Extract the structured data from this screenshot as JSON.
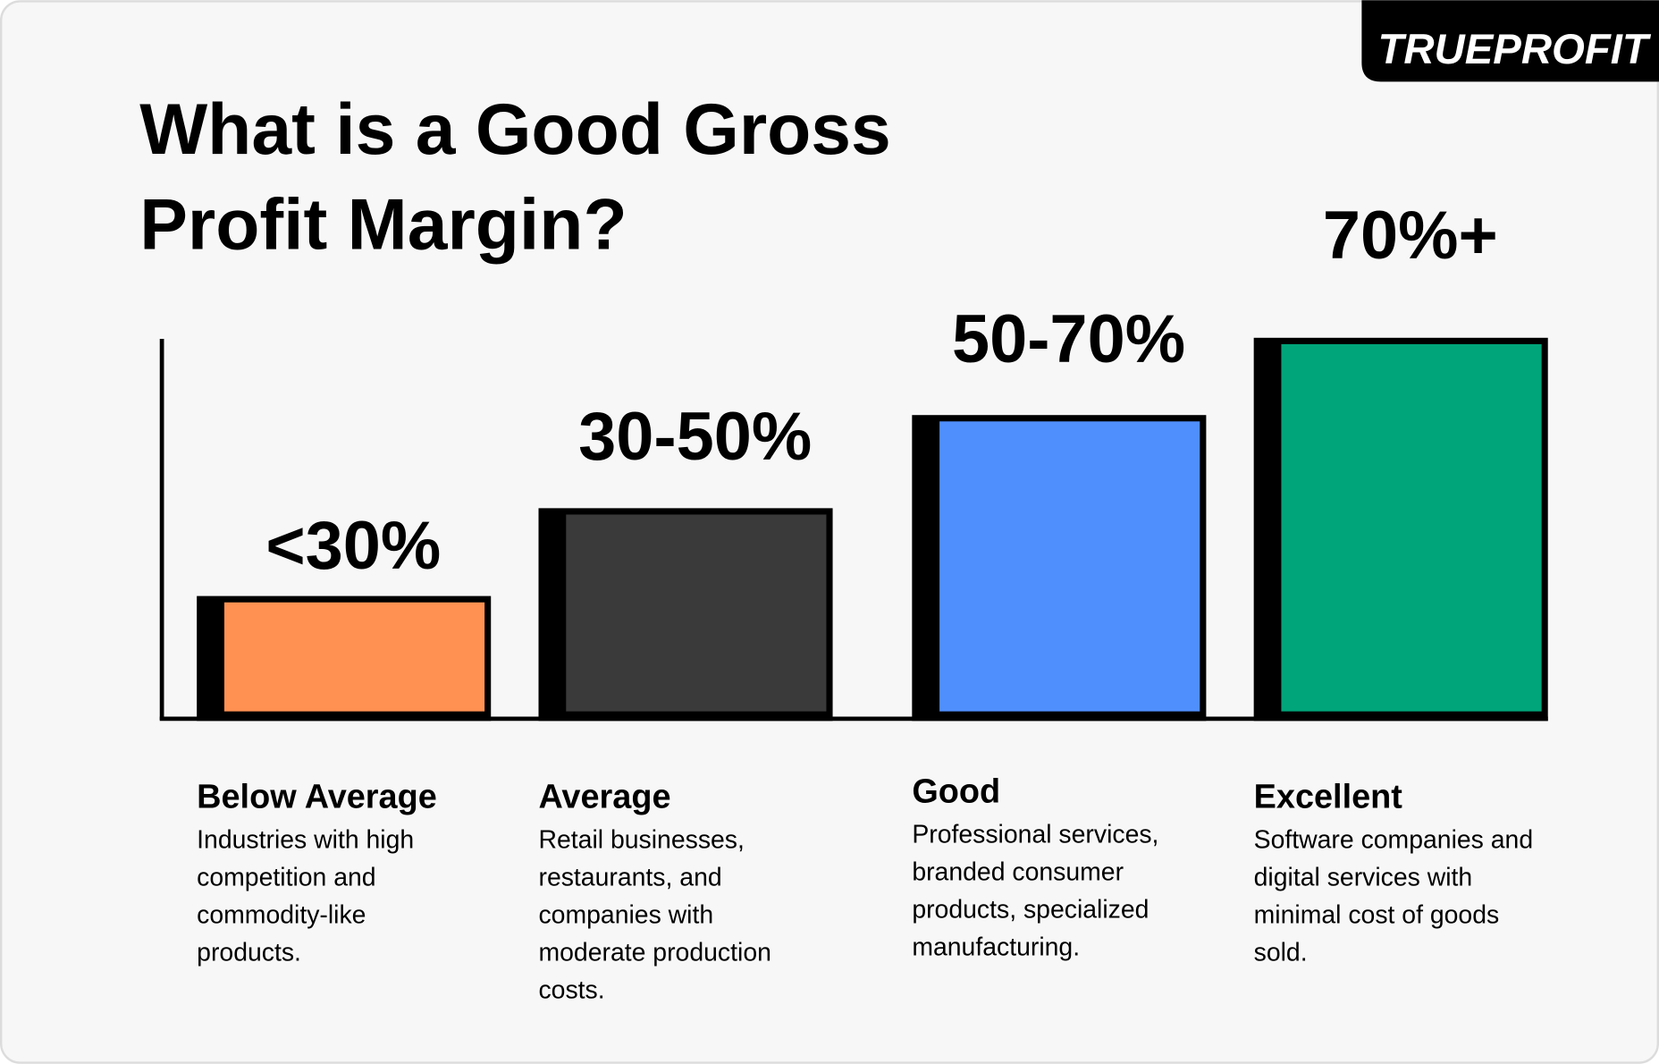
{
  "logo": "TRUEPROFIT",
  "title": [
    "What is a Good Gross",
    "Profit Margin?"
  ],
  "tiers": [
    {
      "range": "<30%",
      "label": "Below Average",
      "color": "#ff9152",
      "description": [
        "Industries with high",
        "competition and",
        "commodity-like",
        "products."
      ]
    },
    {
      "range": "30-50%",
      "label": "Average",
      "color": "#3a3a3a",
      "description": [
        "Retail businesses,",
        "restaurants, and",
        "companies with",
        "moderate production",
        "costs."
      ]
    },
    {
      "range": "50-70%",
      "label": "Good",
      "color": "#4f8ffd",
      "description": [
        "Professional services,",
        "branded consumer",
        "products, specialized",
        "manufacturing."
      ]
    },
    {
      "range": "70%+",
      "label": "Excellent",
      "color": "#00a57a",
      "description": [
        "Software companies and",
        "digital services with",
        "minimal cost of goods",
        "sold."
      ]
    }
  ]
}
